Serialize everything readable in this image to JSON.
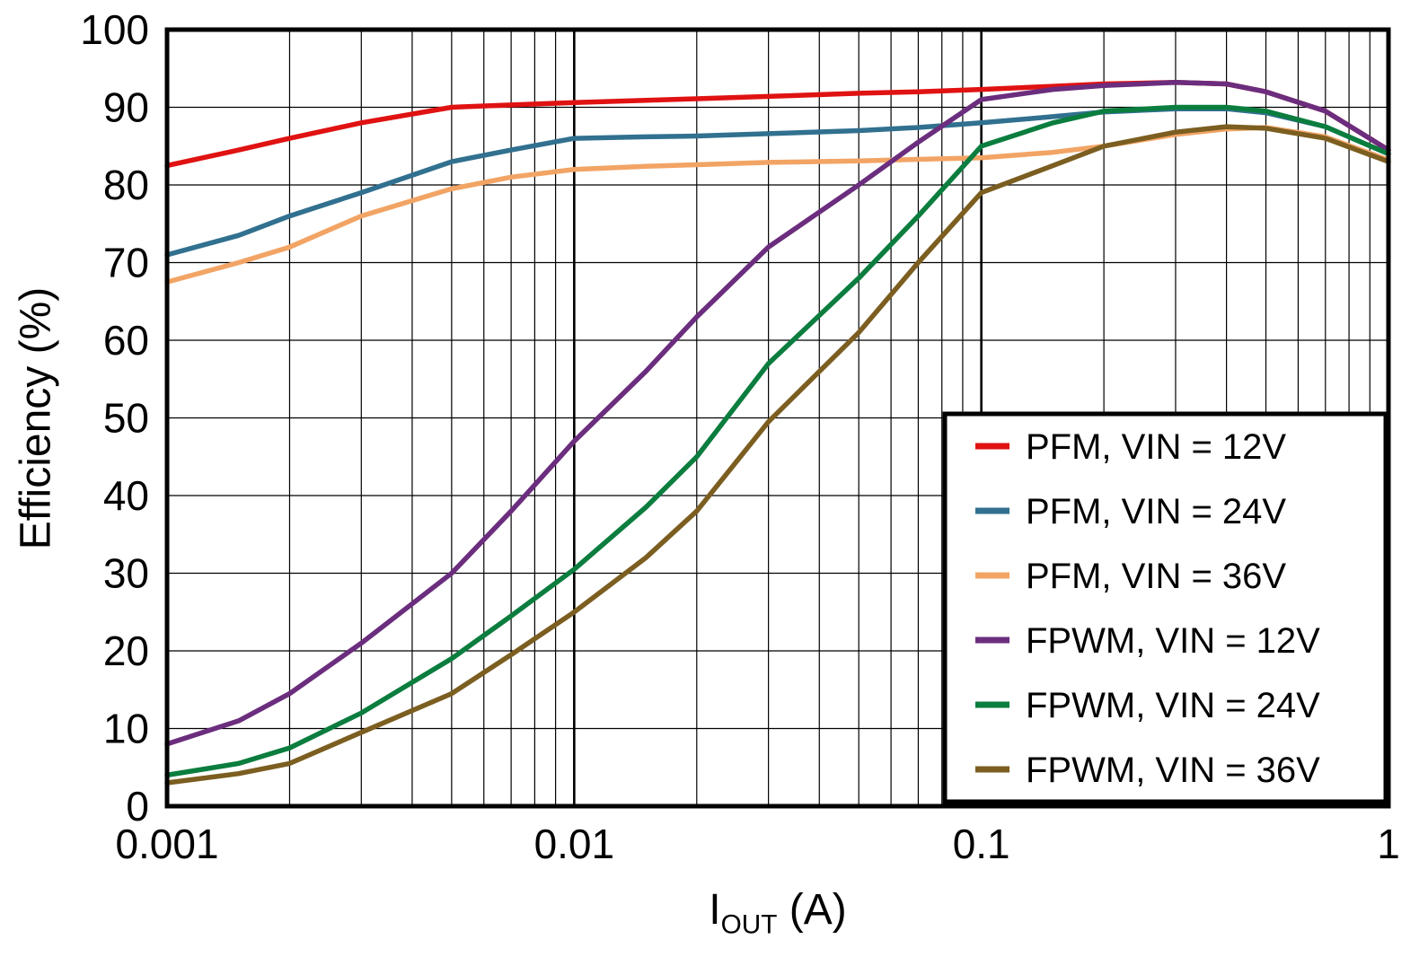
{
  "chart_data": {
    "type": "line",
    "title": "",
    "x_scale": "log",
    "xlim": [
      0.001,
      1
    ],
    "ylim": [
      0,
      100
    ],
    "y_tick_step": 10,
    "grid": true,
    "legend_position": "lower right",
    "ylabel": "Efficiency (%)",
    "xlabel": {
      "main": "I",
      "sub": "OUT",
      "unit": " (A)"
    },
    "x_tick_values": [
      0.001,
      0.01,
      0.1,
      1
    ],
    "x_tick_labels": [
      "0.001",
      "0.01",
      "0.1",
      "1"
    ],
    "y_tick_labels": [
      "0",
      "10",
      "20",
      "30",
      "40",
      "50",
      "60",
      "70",
      "80",
      "90",
      "100"
    ],
    "x": [
      0.001,
      0.0015,
      0.002,
      0.003,
      0.005,
      0.007,
      0.01,
      0.015,
      0.02,
      0.03,
      0.05,
      0.07,
      0.1,
      0.15,
      0.2,
      0.3,
      0.4,
      0.5,
      0.7,
      1
    ],
    "series": [
      {
        "name": "PFM, VIN = 12V",
        "color": "#e01212",
        "values": [
          82.5,
          84.5,
          86,
          88,
          90,
          90.3,
          90.6,
          90.9,
          91.1,
          91.4,
          91.8,
          92,
          92.3,
          92.7,
          93,
          93.2,
          93,
          92,
          89.5,
          84.5
        ]
      },
      {
        "name": "PFM, VIN = 24V",
        "color": "#31708f",
        "values": [
          71,
          73.5,
          76,
          79,
          83,
          84.5,
          86,
          86.2,
          86.3,
          86.6,
          87,
          87.4,
          88,
          88.8,
          89.4,
          89.8,
          89.8,
          89.3,
          87.5,
          84
        ]
      },
      {
        "name": "PFM, VIN = 36V",
        "color": "#f2a465",
        "values": [
          67.5,
          70,
          72,
          76,
          79.5,
          81,
          82,
          82.4,
          82.6,
          82.9,
          83.1,
          83.3,
          83.5,
          84.2,
          85,
          86.5,
          87.2,
          87.4,
          86.2,
          83.2
        ]
      },
      {
        "name": "FPWM, VIN = 12V",
        "color": "#6b2d7e",
        "values": [
          8,
          11,
          14.5,
          21,
          30,
          38,
          47,
          56,
          63,
          72,
          80,
          85.5,
          91,
          92.3,
          92.8,
          93.2,
          93,
          92,
          89.5,
          84.5
        ]
      },
      {
        "name": "FPWM, VIN = 24V",
        "color": "#0b7d3e",
        "values": [
          4,
          5.5,
          7.5,
          12,
          19,
          24.5,
          30.5,
          38.5,
          45,
          57,
          68,
          76,
          85,
          88,
          89.5,
          90,
          90,
          89.5,
          87.5,
          84
        ]
      },
      {
        "name": "FPWM, VIN = 36V",
        "color": "#7b5e20",
        "values": [
          3,
          4.2,
          5.5,
          9.5,
          14.5,
          19.5,
          25,
          32,
          38,
          49.5,
          61,
          70,
          79,
          82.5,
          85,
          86.8,
          87.5,
          87.3,
          86,
          83
        ]
      }
    ]
  }
}
